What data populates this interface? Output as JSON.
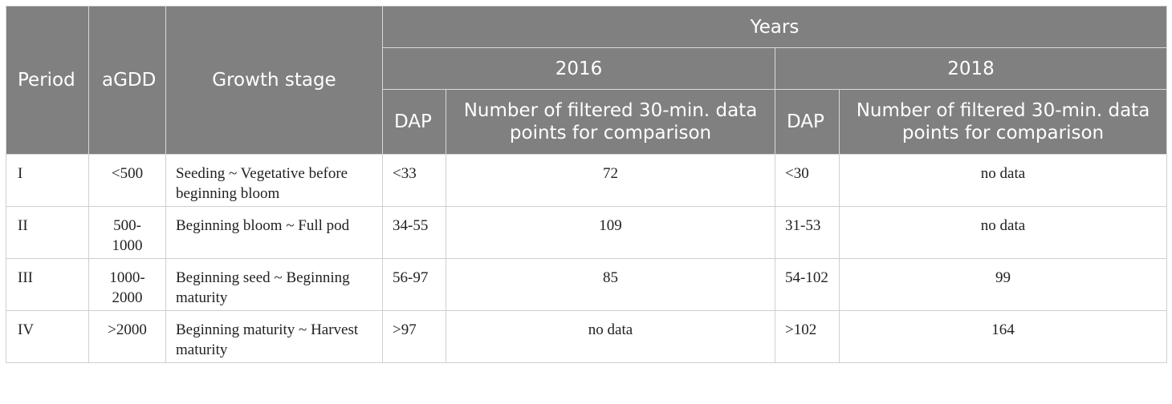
{
  "header": {
    "period": "Period",
    "agdd": "aGDD",
    "growth_stage": "Growth stage",
    "years": "Years",
    "year_2016": "2016",
    "year_2018": "2018",
    "dap_2016": "DAP",
    "points_2016": "Number of filtered 30-min. data points for comparison",
    "dap_2018": "DAP",
    "points_2018": "Number of filtered 30-min. data points for comparison"
  },
  "rows": [
    {
      "period": "I",
      "agdd": "<500",
      "stage": "Seeding ~ Vegetative before beginning bloom",
      "dap_2016": "<33",
      "points_2016": "72",
      "dap_2018": "<30",
      "points_2018": "no data"
    },
    {
      "period": "II",
      "agdd": "500-1000",
      "stage": "Beginning bloom ~ Full pod",
      "dap_2016": "34-55",
      "points_2016": "109",
      "dap_2018": "31-53",
      "points_2018": "no data"
    },
    {
      "period": "III",
      "agdd": "1000-2000",
      "stage": "Beginning seed ~ Beginning maturity",
      "dap_2016": "56-97",
      "points_2016": "85",
      "dap_2018": "54-102",
      "points_2018": "99"
    },
    {
      "period": "IV",
      "agdd": ">2000",
      "stage": "Beginning maturity ~ Harvest maturity",
      "dap_2016": ">97",
      "points_2016": "no data",
      "dap_2018": ">102",
      "points_2018": "164"
    }
  ]
}
